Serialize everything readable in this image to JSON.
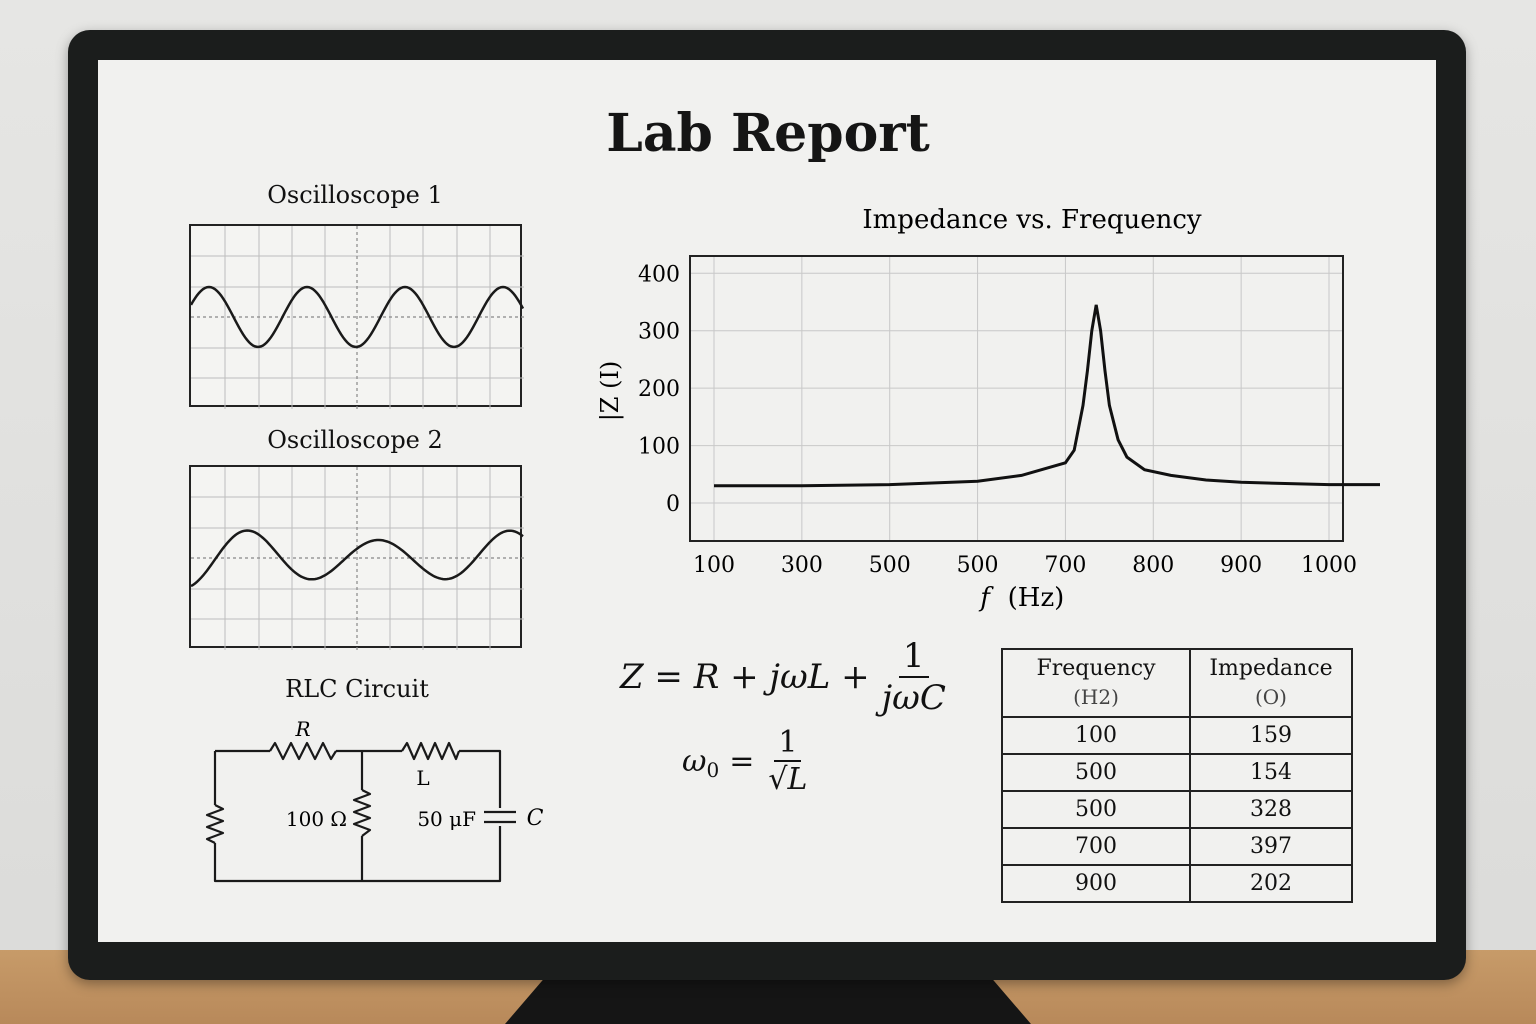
{
  "page_title": "Lab Report",
  "oscilloscope_1": {
    "label": "Oscilloscope 1"
  },
  "oscilloscope_2": {
    "label": "Oscilloscope 2"
  },
  "circuit": {
    "label": "RLC Circuit",
    "resistor_symbol": "R",
    "inductor_symbol": "L",
    "capacitor_symbol": "C",
    "resistor_value": "100 Ω",
    "capacitor_value": "50 μF"
  },
  "chart_data": {
    "type": "line",
    "title": "Impedance vs. Frequency",
    "xlabel_var": "f",
    "xlabel_unit": "(Hz)",
    "ylabel": "|Z (Ι)",
    "x_tick_labels": [
      "100",
      "300",
      "500",
      "500",
      "700",
      "800",
      "900",
      "1000"
    ],
    "y_ticks": [
      0,
      100,
      200,
      300,
      400
    ],
    "ylim": [
      0,
      400
    ],
    "grid": true,
    "series": [
      {
        "x": [
          0,
          1,
          2,
          3,
          3.5,
          4,
          4.1,
          4.2,
          4.25,
          4.3,
          4.35,
          4.4,
          4.45,
          4.5,
          4.6,
          4.7,
          4.9,
          5.2,
          5.6,
          6,
          6.5,
          7,
          7.5,
          8
        ],
        "y": [
          30,
          30,
          32,
          38,
          48,
          70,
          92,
          170,
          230,
          300,
          345,
          300,
          230,
          170,
          110,
          80,
          58,
          48,
          40,
          36,
          34,
          32,
          32,
          32
        ]
      }
    ]
  },
  "equations": {
    "impedance_lhs": "Z = R + jωL +",
    "impedance_num": "1",
    "impedance_den": "jωC",
    "resonance_lhs": "ω",
    "resonance_sub": "0",
    "resonance_eq": "=",
    "resonance_num": "1",
    "resonance_den": "√L"
  },
  "table": {
    "headers": [
      {
        "name": "Frequency",
        "unit": "(H2)"
      },
      {
        "name": "Impedance",
        "unit": "(O)"
      }
    ],
    "rows": [
      [
        "100",
        "159"
      ],
      [
        "500",
        "154"
      ],
      [
        "500",
        "328"
      ],
      [
        "700",
        "397"
      ],
      [
        "900",
        "202"
      ]
    ]
  }
}
